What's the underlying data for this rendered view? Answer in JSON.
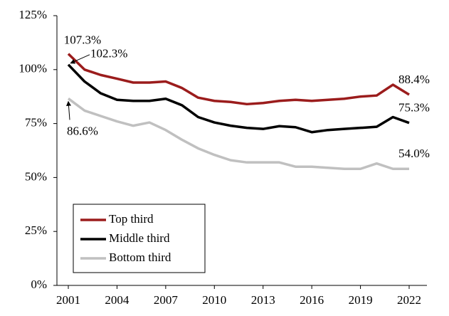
{
  "chart_data": {
    "type": "line",
    "x": [
      2001,
      2002,
      2003,
      2004,
      2005,
      2006,
      2007,
      2008,
      2009,
      2010,
      2011,
      2012,
      2013,
      2014,
      2015,
      2016,
      2017,
      2018,
      2019,
      2020,
      2021,
      2022
    ],
    "xlim": [
      2001,
      2022
    ],
    "xticks": [
      2001,
      2004,
      2007,
      2010,
      2013,
      2016,
      2019,
      2022
    ],
    "ylim": [
      0,
      125
    ],
    "yticks": [
      {
        "value": 0,
        "label": "0%"
      },
      {
        "value": 25,
        "label": "25%"
      },
      {
        "value": 50,
        "label": "50%"
      },
      {
        "value": 75,
        "label": "75%"
      },
      {
        "value": 100,
        "label": "100%"
      },
      {
        "value": 125,
        "label": "125%"
      }
    ],
    "legend": "lower left",
    "series": [
      {
        "name": "Top third",
        "color": "#9b1c1c",
        "values": [
          107.3,
          100,
          97.5,
          95.8,
          94,
          94,
          94.5,
          91.5,
          87,
          85.5,
          85,
          84,
          84.5,
          85.5,
          86,
          85.5,
          86,
          86.5,
          87.5,
          88,
          93,
          88.4
        ],
        "value_labels": [
          "107.3%",
          null,
          null,
          null,
          null,
          null,
          null,
          null,
          null,
          null,
          null,
          null,
          null,
          null,
          null,
          null,
          null,
          null,
          null,
          null,
          null,
          "88.4%"
        ]
      },
      {
        "name": "Middle third",
        "color": "#000000",
        "values": [
          102.3,
          94.5,
          89,
          86,
          85.5,
          85.5,
          86.5,
          83.5,
          78,
          75.5,
          74,
          73,
          72.5,
          73.8,
          73.3,
          71,
          72,
          72.5,
          73,
          73.5,
          78,
          75.3
        ],
        "value_labels": [
          "102.3%",
          null,
          null,
          null,
          null,
          null,
          null,
          null,
          null,
          null,
          null,
          null,
          null,
          null,
          null,
          null,
          null,
          null,
          null,
          null,
          null,
          "75.3%"
        ]
      },
      {
        "name": "Bottom third",
        "color": "#c0c0c0",
        "values": [
          86.6,
          81,
          78.5,
          76,
          74,
          75.5,
          72,
          67.5,
          63.5,
          60.5,
          58,
          57,
          57,
          57,
          55,
          55,
          54.5,
          54,
          54,
          56.5,
          54,
          54.0
        ],
        "value_labels": [
          "86.6%",
          null,
          null,
          null,
          null,
          null,
          null,
          null,
          null,
          null,
          null,
          null,
          null,
          null,
          null,
          null,
          null,
          null,
          null,
          null,
          null,
          "54.0%"
        ]
      }
    ]
  }
}
